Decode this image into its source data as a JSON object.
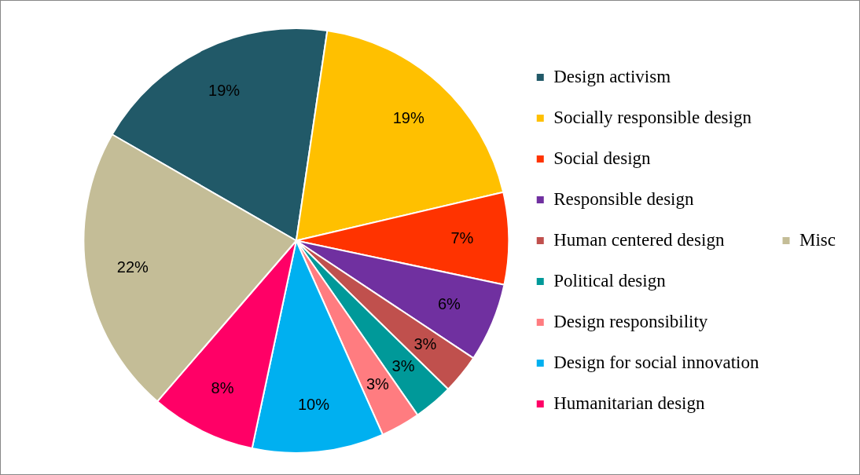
{
  "chart_data": {
    "type": "pie",
    "categories": [
      "Design activism",
      "Socially responsible design",
      "Social design",
      "Responsible design",
      "Human centered design",
      "Political design",
      "Design responsibility",
      "Design for social innovation",
      "Humanitarian design",
      "Misc"
    ],
    "values": [
      19,
      19,
      7,
      6,
      3,
      3,
      3,
      10,
      8,
      22
    ],
    "colors": [
      "#215968",
      "#ffc000",
      "#ff3300",
      "#7030a0",
      "#c0504d",
      "#009999",
      "#ff7c80",
      "#00b0f0",
      "#ff0066",
      "#c4bd97"
    ],
    "value_labels": [
      "19%",
      "19%",
      "7%",
      "6%",
      "3%",
      "3%",
      "3%",
      "10%",
      "8%",
      "22%"
    ],
    "legend": "right"
  }
}
